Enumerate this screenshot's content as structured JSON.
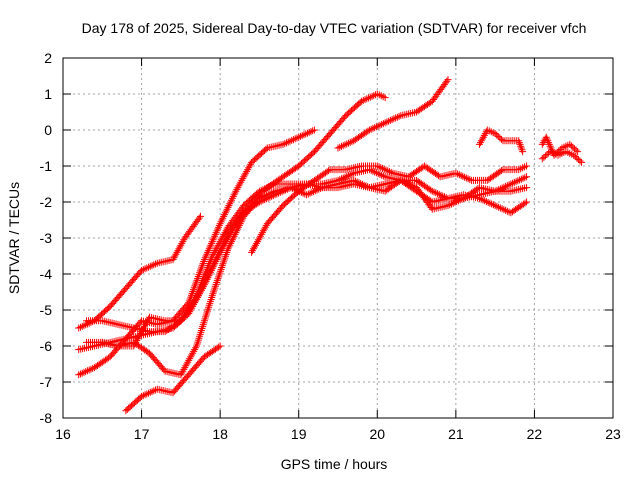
{
  "chart_data": {
    "type": "scatter",
    "title": "Day 178 of 2025, Sidereal Day-to-day VTEC variation (SDTVAR) for receiver vfch",
    "xlabel": "GPS time / hours",
    "ylabel": "SDTVAR / TECUs",
    "xlim": [
      16,
      23
    ],
    "ylim": [
      -8,
      2
    ],
    "x_ticks": [
      16,
      17,
      18,
      19,
      20,
      21,
      22,
      23
    ],
    "y_ticks": [
      -8,
      -7,
      -6,
      -5,
      -4,
      -3,
      -2,
      -1,
      0,
      1,
      2
    ],
    "grid": true,
    "marker": "plus",
    "color": "#ff0000",
    "series": [
      {
        "name": "track-1",
        "x": [
          16.2,
          16.4,
          16.6,
          16.8,
          17.0,
          17.2,
          17.4,
          17.55,
          17.75
        ],
        "y": [
          -5.5,
          -5.3,
          -4.9,
          -4.4,
          -3.9,
          -3.7,
          -3.6,
          -3.0,
          -2.4
        ]
      },
      {
        "name": "track-2",
        "x": [
          16.2,
          16.4,
          16.6,
          16.8,
          17.0,
          17.2,
          17.4,
          17.6,
          17.8,
          18.0,
          18.2,
          18.4,
          18.6,
          18.8,
          19.0,
          19.2
        ],
        "y": [
          -6.8,
          -6.6,
          -6.3,
          -5.8,
          -5.3,
          -5.4,
          -5.3,
          -4.8,
          -3.6,
          -2.6,
          -1.7,
          -0.9,
          -0.5,
          -0.4,
          -0.2,
          0.0
        ]
      },
      {
        "name": "track-3",
        "x": [
          16.2,
          16.4,
          16.6,
          16.8,
          17.0,
          17.2,
          17.4,
          17.6,
          17.8,
          18.0,
          18.2,
          18.4,
          18.6,
          18.8,
          19.0,
          19.2,
          19.4,
          19.6,
          19.8,
          20.0,
          20.1
        ],
        "y": [
          -6.1,
          -6.0,
          -5.9,
          -5.8,
          -5.7,
          -5.6,
          -5.5,
          -5.1,
          -4.3,
          -3.4,
          -2.6,
          -2.0,
          -1.6,
          -1.3,
          -1.0,
          -0.6,
          -0.1,
          0.4,
          0.8,
          1.0,
          0.9
        ]
      },
      {
        "name": "track-4",
        "x": [
          16.3,
          16.5,
          16.7,
          16.9,
          17.1,
          17.3,
          17.5,
          17.7,
          17.9,
          18.1,
          18.3,
          18.5,
          18.7,
          18.9,
          19.1,
          19.3,
          19.5,
          19.7,
          19.9,
          20.1,
          20.3,
          20.5,
          20.7,
          20.9,
          21.1,
          21.3,
          21.5,
          21.7,
          21.9
        ],
        "y": [
          -5.9,
          -5.9,
          -6.0,
          -6.0,
          -5.2,
          -5.3,
          -5.3,
          -4.6,
          -3.5,
          -2.7,
          -2.1,
          -1.7,
          -1.5,
          -1.5,
          -1.5,
          -1.6,
          -1.5,
          -1.4,
          -1.6,
          -1.5,
          -1.4,
          -1.6,
          -2.2,
          -2.1,
          -1.9,
          -1.8,
          -1.7,
          -1.7,
          -1.6
        ]
      },
      {
        "name": "track-5",
        "x": [
          16.3,
          16.5,
          16.7,
          16.9,
          17.1,
          17.3,
          17.5,
          17.7,
          17.9,
          18.1,
          18.3,
          18.5,
          18.7,
          18.9,
          19.1,
          19.3,
          19.5,
          19.7,
          19.9,
          20.1,
          20.3,
          20.5,
          20.7,
          20.9,
          21.1,
          21.3,
          21.5,
          21.7,
          21.9
        ],
        "y": [
          -5.3,
          -5.3,
          -5.4,
          -5.5,
          -5.6,
          -5.6,
          -5.3,
          -4.7,
          -3.8,
          -2.9,
          -2.3,
          -2.0,
          -1.8,
          -1.6,
          -1.5,
          -1.5,
          -1.4,
          -1.2,
          -1.1,
          -1.3,
          -1.4,
          -1.7,
          -2.0,
          -1.9,
          -1.8,
          -1.9,
          -2.1,
          -2.3,
          -2.0
        ]
      },
      {
        "name": "track-6",
        "x": [
          16.5,
          16.7,
          16.9,
          17.1,
          17.3,
          17.5,
          17.7,
          17.9,
          18.1,
          18.3,
          18.5,
          18.7,
          18.9,
          19.1,
          19.3,
          19.5,
          19.7,
          19.9,
          20.1,
          20.3,
          20.5,
          20.7,
          20.9,
          21.1,
          21.3,
          21.5,
          21.7,
          21.9
        ],
        "y": [
          -5.9,
          -6.0,
          -5.9,
          -6.2,
          -6.7,
          -6.8,
          -6.0,
          -4.6,
          -3.3,
          -2.4,
          -1.9,
          -1.7,
          -1.6,
          -1.8,
          -1.6,
          -1.6,
          -1.5,
          -1.6,
          -1.7,
          -1.4,
          -1.4,
          -1.7,
          -1.9,
          -1.9,
          -1.6,
          -1.7,
          -1.5,
          -1.3
        ]
      },
      {
        "name": "track-7",
        "x": [
          16.8,
          17.0,
          17.2,
          17.4,
          17.6,
          17.8,
          18.0
        ],
        "y": [
          -7.8,
          -7.4,
          -7.2,
          -7.3,
          -6.8,
          -6.3,
          -6.0
        ]
      },
      {
        "name": "track-8",
        "x": [
          18.4,
          18.6,
          18.8,
          19.0,
          19.2,
          19.4,
          19.6,
          19.8,
          20.0,
          20.2,
          20.4,
          20.6,
          20.8,
          21.0,
          21.2,
          21.4,
          21.6,
          21.8,
          21.9
        ],
        "y": [
          -3.4,
          -2.6,
          -2.1,
          -1.7,
          -1.4,
          -1.1,
          -1.1,
          -1.0,
          -1.0,
          -1.2,
          -1.3,
          -1.0,
          -1.3,
          -1.2,
          -1.4,
          -1.4,
          -1.1,
          -1.1,
          -1.0
        ]
      },
      {
        "name": "track-9",
        "x": [
          19.5,
          19.7,
          19.9,
          20.1,
          20.3,
          20.5,
          20.7,
          20.9
        ],
        "y": [
          -0.5,
          -0.3,
          0.0,
          0.2,
          0.4,
          0.5,
          0.8,
          1.4
        ]
      },
      {
        "name": "track-10",
        "x": [
          21.3,
          21.4,
          21.5,
          21.6,
          21.7,
          21.8,
          21.85
        ],
        "y": [
          -0.4,
          0.0,
          -0.1,
          -0.3,
          -0.3,
          -0.3,
          -0.6
        ]
      },
      {
        "name": "track-11",
        "x": [
          22.1,
          22.2,
          22.3,
          22.4,
          22.5,
          22.6
        ],
        "y": [
          -0.8,
          -0.6,
          -0.7,
          -0.6,
          -0.7,
          -0.9
        ]
      },
      {
        "name": "track-12",
        "x": [
          22.1,
          22.15,
          22.25,
          22.35,
          22.45,
          22.55
        ],
        "y": [
          -0.4,
          -0.2,
          -0.7,
          -0.5,
          -0.4,
          -0.6
        ]
      }
    ]
  }
}
